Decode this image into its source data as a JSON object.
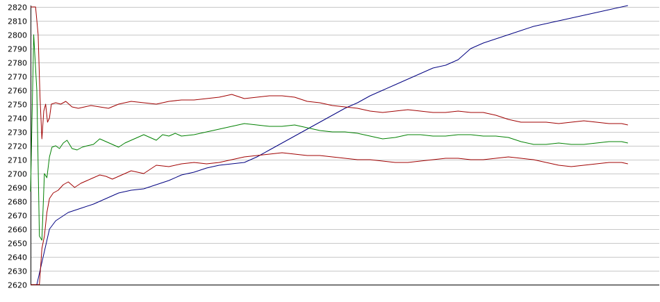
{
  "chart_data": {
    "type": "line",
    "title": "",
    "xlabel": "",
    "ylabel": "",
    "ylim": [
      2620,
      2820
    ],
    "xlim": [
      0,
      1000
    ],
    "y_ticks": [
      2620,
      2630,
      2640,
      2650,
      2660,
      2670,
      2680,
      2690,
      2700,
      2710,
      2720,
      2730,
      2740,
      2750,
      2760,
      2770,
      2780,
      2790,
      2800,
      2810,
      2820
    ],
    "y_tick_labels": [
      "2620",
      "2630",
      "2640",
      "2650",
      "2660",
      "2670",
      "2680",
      "2690",
      "2700",
      "2710",
      "2720",
      "2730",
      "2740",
      "2750",
      "2760",
      "2770",
      "2780",
      "2790",
      "2800",
      "2810",
      "2820"
    ],
    "grid": true,
    "legend": "none",
    "series": [
      {
        "color": "#000080",
        "points": [
          [
            0,
            2620
          ],
          [
            10,
            2620
          ],
          [
            20,
            2640
          ],
          [
            30,
            2660
          ],
          [
            40,
            2666
          ],
          [
            60,
            2672
          ],
          [
            80,
            2675
          ],
          [
            100,
            2678
          ],
          [
            120,
            2682
          ],
          [
            140,
            2686
          ],
          [
            160,
            2688
          ],
          [
            180,
            2689
          ],
          [
            200,
            2692
          ],
          [
            220,
            2695
          ],
          [
            240,
            2699
          ],
          [
            260,
            2701
          ],
          [
            280,
            2704
          ],
          [
            300,
            2706
          ],
          [
            320,
            2707
          ],
          [
            340,
            2708
          ],
          [
            360,
            2712
          ],
          [
            380,
            2717
          ],
          [
            400,
            2722
          ],
          [
            420,
            2727
          ],
          [
            440,
            2732
          ],
          [
            460,
            2737
          ],
          [
            480,
            2742
          ],
          [
            500,
            2747
          ],
          [
            520,
            2751
          ],
          [
            540,
            2756
          ],
          [
            560,
            2760
          ],
          [
            580,
            2764
          ],
          [
            600,
            2768
          ],
          [
            620,
            2772
          ],
          [
            640,
            2776
          ],
          [
            660,
            2778
          ],
          [
            680,
            2782
          ],
          [
            700,
            2790
          ],
          [
            720,
            2794
          ],
          [
            740,
            2797
          ],
          [
            760,
            2800
          ],
          [
            780,
            2803
          ],
          [
            800,
            2806
          ],
          [
            820,
            2808
          ],
          [
            840,
            2810
          ],
          [
            860,
            2812
          ],
          [
            880,
            2814
          ],
          [
            900,
            2816
          ],
          [
            920,
            2818
          ],
          [
            940,
            2820
          ],
          [
            950,
            2821
          ]
        ]
      },
      {
        "color": "#008000",
        "points": [
          [
            0,
            2687
          ],
          [
            5,
            2800
          ],
          [
            10,
            2760
          ],
          [
            14,
            2655
          ],
          [
            18,
            2652
          ],
          [
            22,
            2700
          ],
          [
            26,
            2697
          ],
          [
            30,
            2712
          ],
          [
            34,
            2719
          ],
          [
            40,
            2720
          ],
          [
            46,
            2718
          ],
          [
            52,
            2722
          ],
          [
            58,
            2724
          ],
          [
            66,
            2718
          ],
          [
            74,
            2717
          ],
          [
            82,
            2719
          ],
          [
            90,
            2720
          ],
          [
            100,
            2721
          ],
          [
            110,
            2725
          ],
          [
            120,
            2723
          ],
          [
            130,
            2721
          ],
          [
            140,
            2719
          ],
          [
            150,
            2722
          ],
          [
            160,
            2724
          ],
          [
            170,
            2726
          ],
          [
            180,
            2728
          ],
          [
            190,
            2726
          ],
          [
            200,
            2724
          ],
          [
            210,
            2728
          ],
          [
            220,
            2727
          ],
          [
            230,
            2729
          ],
          [
            240,
            2727
          ],
          [
            260,
            2728
          ],
          [
            280,
            2730
          ],
          [
            300,
            2732
          ],
          [
            320,
            2734
          ],
          [
            340,
            2736
          ],
          [
            360,
            2735
          ],
          [
            380,
            2734
          ],
          [
            400,
            2734
          ],
          [
            420,
            2735
          ],
          [
            440,
            2733
          ],
          [
            460,
            2731
          ],
          [
            480,
            2730
          ],
          [
            500,
            2730
          ],
          [
            520,
            2729
          ],
          [
            540,
            2727
          ],
          [
            560,
            2725
          ],
          [
            580,
            2726
          ],
          [
            600,
            2728
          ],
          [
            620,
            2728
          ],
          [
            640,
            2727
          ],
          [
            660,
            2727
          ],
          [
            680,
            2728
          ],
          [
            700,
            2728
          ],
          [
            720,
            2727
          ],
          [
            740,
            2727
          ],
          [
            760,
            2726
          ],
          [
            780,
            2723
          ],
          [
            800,
            2721
          ],
          [
            820,
            2721
          ],
          [
            840,
            2722
          ],
          [
            860,
            2721
          ],
          [
            880,
            2721
          ],
          [
            900,
            2722
          ],
          [
            920,
            2723
          ],
          [
            940,
            2723
          ],
          [
            950,
            2722
          ]
        ]
      },
      {
        "color": "#a00000",
        "points": [
          [
            0,
            2820
          ],
          [
            4,
            2820
          ],
          [
            8,
            2820
          ],
          [
            12,
            2800
          ],
          [
            15,
            2755
          ],
          [
            18,
            2725
          ],
          [
            21,
            2745
          ],
          [
            24,
            2750
          ],
          [
            27,
            2737
          ],
          [
            30,
            2740
          ],
          [
            33,
            2750
          ],
          [
            40,
            2751
          ],
          [
            48,
            2750
          ],
          [
            56,
            2752
          ],
          [
            66,
            2748
          ],
          [
            76,
            2747
          ],
          [
            86,
            2748
          ],
          [
            96,
            2749
          ],
          [
            110,
            2748
          ],
          [
            124,
            2747
          ],
          [
            140,
            2750
          ],
          [
            160,
            2752
          ],
          [
            180,
            2751
          ],
          [
            200,
            2750
          ],
          [
            220,
            2752
          ],
          [
            240,
            2753
          ],
          [
            260,
            2753
          ],
          [
            280,
            2754
          ],
          [
            300,
            2755
          ],
          [
            320,
            2757
          ],
          [
            340,
            2754
          ],
          [
            360,
            2755
          ],
          [
            380,
            2756
          ],
          [
            400,
            2756
          ],
          [
            420,
            2755
          ],
          [
            440,
            2752
          ],
          [
            460,
            2751
          ],
          [
            480,
            2749
          ],
          [
            500,
            2748
          ],
          [
            520,
            2747
          ],
          [
            540,
            2745
          ],
          [
            560,
            2744
          ],
          [
            580,
            2745
          ],
          [
            600,
            2746
          ],
          [
            620,
            2745
          ],
          [
            640,
            2744
          ],
          [
            660,
            2744
          ],
          [
            680,
            2745
          ],
          [
            700,
            2744
          ],
          [
            720,
            2744
          ],
          [
            740,
            2742
          ],
          [
            760,
            2739
          ],
          [
            780,
            2737
          ],
          [
            800,
            2737
          ],
          [
            820,
            2737
          ],
          [
            840,
            2736
          ],
          [
            860,
            2737
          ],
          [
            880,
            2738
          ],
          [
            900,
            2737
          ],
          [
            920,
            2736
          ],
          [
            940,
            2736
          ],
          [
            950,
            2735
          ]
        ]
      },
      {
        "color": "#a00000",
        "points": [
          [
            0,
            2620
          ],
          [
            5,
            2620
          ],
          [
            10,
            2620
          ],
          [
            14,
            2620
          ],
          [
            18,
            2646
          ],
          [
            22,
            2655
          ],
          [
            26,
            2672
          ],
          [
            30,
            2682
          ],
          [
            36,
            2686
          ],
          [
            44,
            2688
          ],
          [
            52,
            2692
          ],
          [
            60,
            2694
          ],
          [
            70,
            2690
          ],
          [
            80,
            2693
          ],
          [
            90,
            2695
          ],
          [
            100,
            2697
          ],
          [
            110,
            2699
          ],
          [
            120,
            2698
          ],
          [
            130,
            2696
          ],
          [
            140,
            2698
          ],
          [
            150,
            2700
          ],
          [
            160,
            2702
          ],
          [
            170,
            2701
          ],
          [
            180,
            2700
          ],
          [
            190,
            2703
          ],
          [
            200,
            2706
          ],
          [
            220,
            2705
          ],
          [
            240,
            2707
          ],
          [
            260,
            2708
          ],
          [
            280,
            2707
          ],
          [
            300,
            2708
          ],
          [
            320,
            2710
          ],
          [
            340,
            2712
          ],
          [
            360,
            2713
          ],
          [
            380,
            2714
          ],
          [
            400,
            2715
          ],
          [
            420,
            2714
          ],
          [
            440,
            2713
          ],
          [
            460,
            2713
          ],
          [
            480,
            2712
          ],
          [
            500,
            2711
          ],
          [
            520,
            2710
          ],
          [
            540,
            2710
          ],
          [
            560,
            2709
          ],
          [
            580,
            2708
          ],
          [
            600,
            2708
          ],
          [
            620,
            2709
          ],
          [
            640,
            2710
          ],
          [
            660,
            2711
          ],
          [
            680,
            2711
          ],
          [
            700,
            2710
          ],
          [
            720,
            2710
          ],
          [
            740,
            2711
          ],
          [
            760,
            2712
          ],
          [
            780,
            2711
          ],
          [
            800,
            2710
          ],
          [
            820,
            2708
          ],
          [
            840,
            2706
          ],
          [
            860,
            2705
          ],
          [
            880,
            2706
          ],
          [
            900,
            2707
          ],
          [
            920,
            2708
          ],
          [
            940,
            2708
          ],
          [
            950,
            2707
          ]
        ]
      }
    ]
  }
}
